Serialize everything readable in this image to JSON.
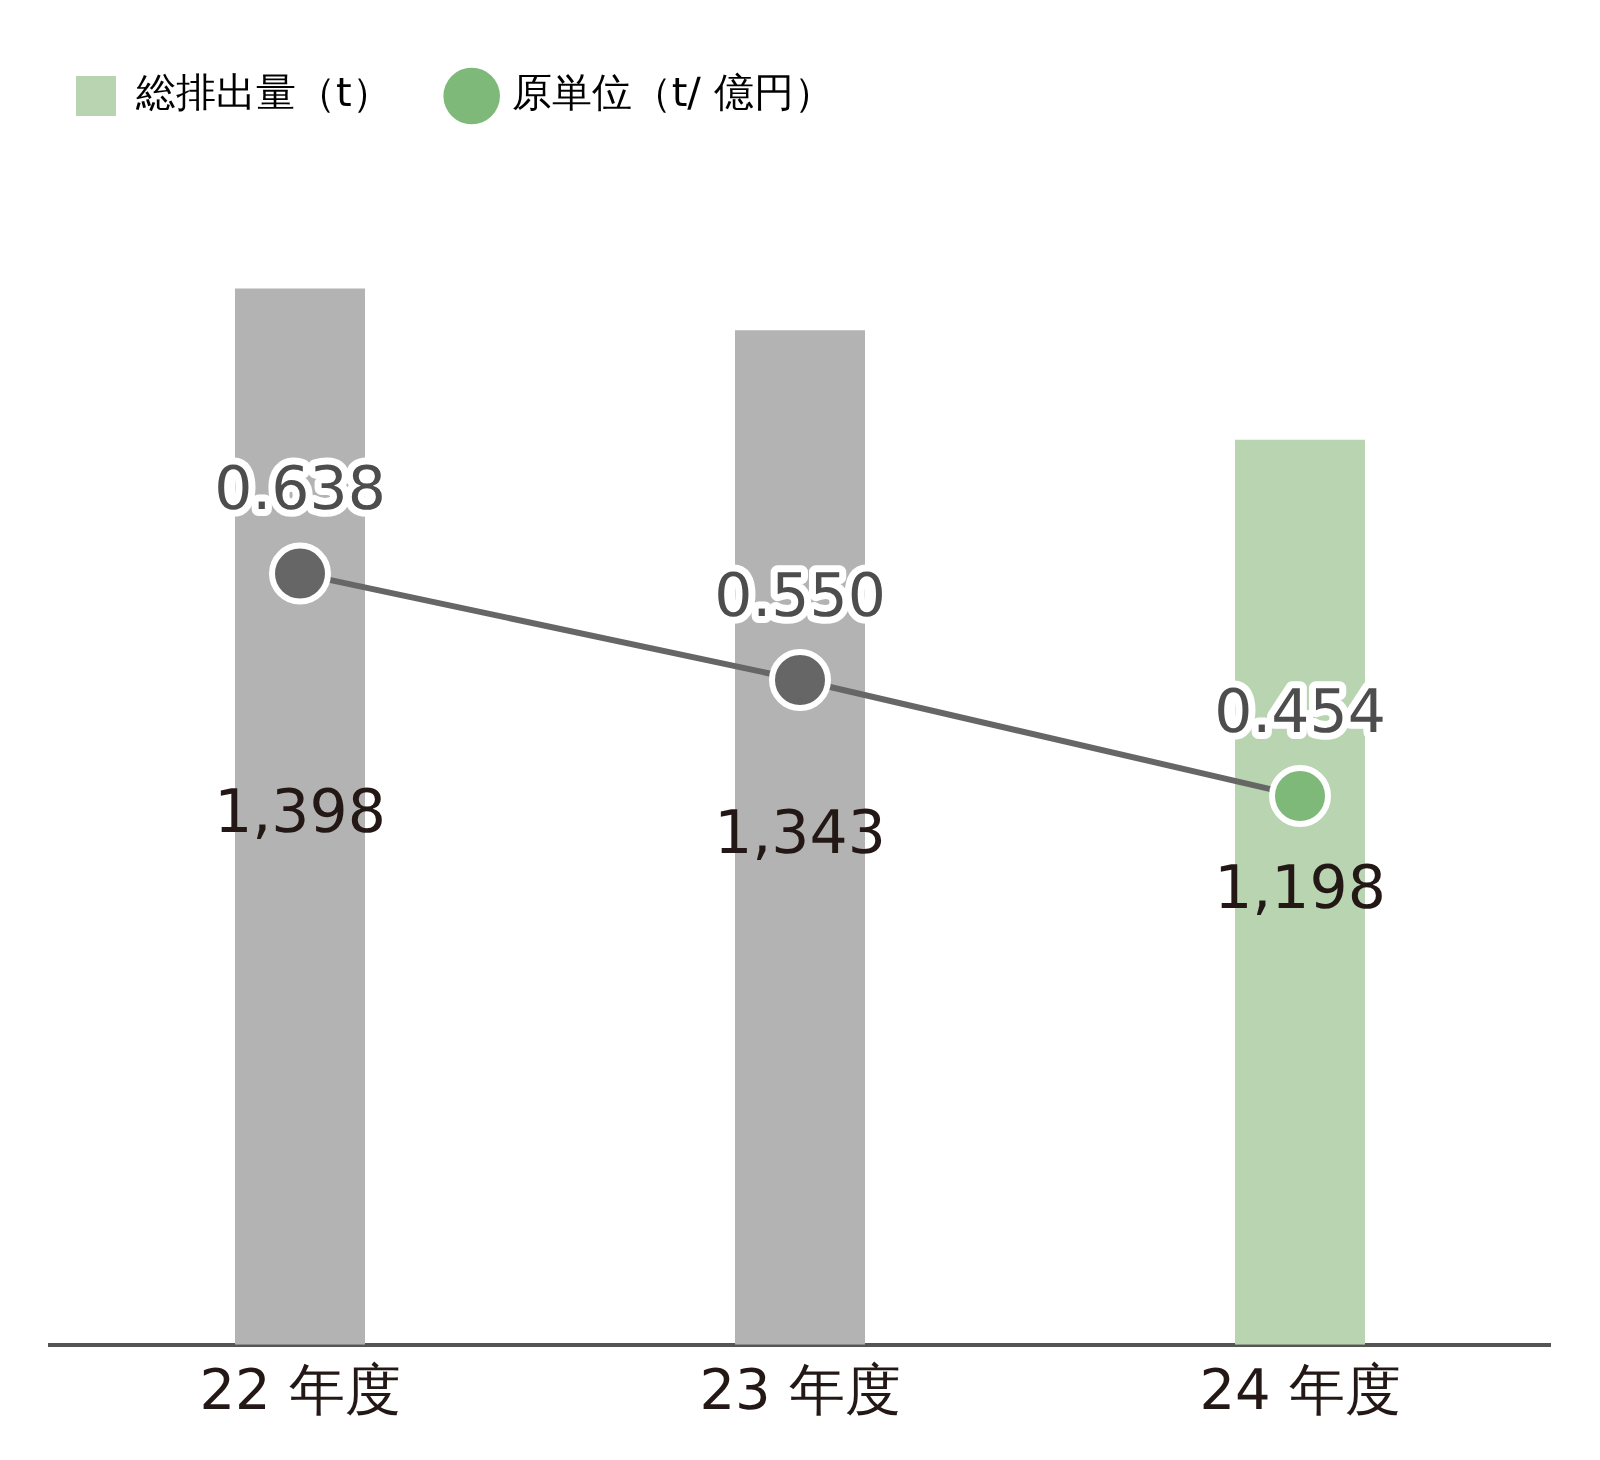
{
  "chart_data": {
    "type": "bar",
    "categories": [
      "22 年度",
      "23 年度",
      "24 年度"
    ],
    "series": [
      {
        "name": "総排出量（t）",
        "type": "bar",
        "colors": [
          "#b3b3b3",
          "#b3b3b3",
          "#b8d4b0"
        ],
        "values": [
          1398,
          1343,
          1198
        ],
        "value_labels": [
          "1,398",
          "1,343",
          "1,198"
        ]
      },
      {
        "name": "原単位（t/ 億円）",
        "type": "line",
        "axis": "y2",
        "color": "#666666",
        "colors": [
          "#666666",
          "#666666",
          "#7fb97a"
        ],
        "values": [
          0.638,
          0.55,
          0.454
        ],
        "value_labels": [
          "0.638",
          "0.550",
          "0.454"
        ],
        "marker": "circle"
      }
    ],
    "tick_labels": "x",
    "grid": false,
    "legend": "top left",
    "data_labels": true
  }
}
